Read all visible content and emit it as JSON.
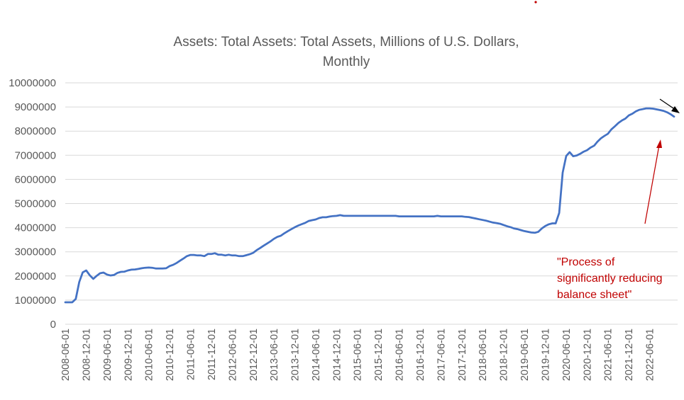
{
  "chart_data": {
    "type": "line",
    "title": "Assets: Total Assets: Total Assets, Millions of U.S. Dollars, Monthly",
    "title_lines": [
      "Assets: Total Assets: Total Assets, Millions of U.S. Dollars,",
      "Monthly"
    ],
    "xlabel": "",
    "ylabel": "",
    "ylim": [
      0,
      10000000
    ],
    "yticks": [
      0,
      1000000,
      2000000,
      3000000,
      4000000,
      5000000,
      6000000,
      7000000,
      8000000,
      9000000,
      10000000
    ],
    "ytick_labels": [
      "0",
      "1000000",
      "2000000",
      "3000000",
      "4000000",
      "5000000",
      "6000000",
      "7000000",
      "8000000",
      "9000000",
      "10000000"
    ],
    "xtick_labels": [
      "2008-06-01",
      "2008-12-01",
      "2009-06-01",
      "2009-12-01",
      "2010-06-01",
      "2010-12-01",
      "2011-06-01",
      "2011-12-01",
      "2012-06-01",
      "2012-12-01",
      "2013-06-01",
      "2013-12-01",
      "2014-06-01",
      "2014-12-01",
      "2015-06-01",
      "2015-12-01",
      "2016-06-01",
      "2016-12-01",
      "2017-06-01",
      "2017-12-01",
      "2018-06-01",
      "2018-12-01",
      "2019-06-01",
      "2019-12-01",
      "2020-06-01",
      "2020-12-01",
      "2021-06-01",
      "2021-12-01",
      "2022-06-01"
    ],
    "grid": "horizontal",
    "legend": "none",
    "series_color": "#4472c4",
    "annotation_color": "#c00000",
    "annotation_lines": [
      "\"Process of",
      "significantly reducing",
      "balance sheet\""
    ],
    "series": [
      {
        "points": [
          [
            "2008-06-01",
            910000
          ],
          [
            "2008-07-01",
            910000
          ],
          [
            "2008-08-01",
            910000
          ],
          [
            "2008-09-01",
            1050000
          ],
          [
            "2008-10-01",
            1750000
          ],
          [
            "2008-11-01",
            2150000
          ],
          [
            "2008-12-01",
            2230000
          ],
          [
            "2009-01-01",
            2030000
          ],
          [
            "2009-02-01",
            1880000
          ],
          [
            "2009-03-01",
            2000000
          ],
          [
            "2009-04-01",
            2110000
          ],
          [
            "2009-05-01",
            2140000
          ],
          [
            "2009-06-01",
            2060000
          ],
          [
            "2009-07-01",
            2020000
          ],
          [
            "2009-08-01",
            2040000
          ],
          [
            "2009-09-01",
            2130000
          ],
          [
            "2009-10-01",
            2170000
          ],
          [
            "2009-11-01",
            2180000
          ],
          [
            "2009-12-01",
            2230000
          ],
          [
            "2010-01-01",
            2260000
          ],
          [
            "2010-02-01",
            2270000
          ],
          [
            "2010-03-01",
            2290000
          ],
          [
            "2010-04-01",
            2320000
          ],
          [
            "2010-05-01",
            2340000
          ],
          [
            "2010-06-01",
            2350000
          ],
          [
            "2010-07-01",
            2340000
          ],
          [
            "2010-08-01",
            2310000
          ],
          [
            "2010-09-01",
            2310000
          ],
          [
            "2010-10-01",
            2310000
          ],
          [
            "2010-11-01",
            2320000
          ],
          [
            "2010-12-01",
            2410000
          ],
          [
            "2011-01-01",
            2460000
          ],
          [
            "2011-02-01",
            2540000
          ],
          [
            "2011-03-01",
            2630000
          ],
          [
            "2011-04-01",
            2720000
          ],
          [
            "2011-05-01",
            2820000
          ],
          [
            "2011-06-01",
            2870000
          ],
          [
            "2011-07-01",
            2870000
          ],
          [
            "2011-08-01",
            2850000
          ],
          [
            "2011-09-01",
            2850000
          ],
          [
            "2011-10-01",
            2820000
          ],
          [
            "2011-11-01",
            2910000
          ],
          [
            "2011-12-01",
            2910000
          ],
          [
            "2012-01-01",
            2940000
          ],
          [
            "2012-02-01",
            2880000
          ],
          [
            "2012-03-01",
            2880000
          ],
          [
            "2012-04-01",
            2850000
          ],
          [
            "2012-05-01",
            2880000
          ],
          [
            "2012-06-01",
            2850000
          ],
          [
            "2012-07-01",
            2850000
          ],
          [
            "2012-08-01",
            2820000
          ],
          [
            "2012-09-01",
            2820000
          ],
          [
            "2012-10-01",
            2860000
          ],
          [
            "2012-11-01",
            2900000
          ],
          [
            "2012-12-01",
            2960000
          ],
          [
            "2013-01-01",
            3070000
          ],
          [
            "2013-02-01",
            3160000
          ],
          [
            "2013-03-01",
            3250000
          ],
          [
            "2013-04-01",
            3340000
          ],
          [
            "2013-05-01",
            3430000
          ],
          [
            "2013-06-01",
            3540000
          ],
          [
            "2013-07-01",
            3620000
          ],
          [
            "2013-08-01",
            3670000
          ],
          [
            "2013-09-01",
            3770000
          ],
          [
            "2013-10-01",
            3860000
          ],
          [
            "2013-11-01",
            3940000
          ],
          [
            "2013-12-01",
            4020000
          ],
          [
            "2014-01-01",
            4090000
          ],
          [
            "2014-02-01",
            4150000
          ],
          [
            "2014-03-01",
            4200000
          ],
          [
            "2014-04-01",
            4280000
          ],
          [
            "2014-05-01",
            4310000
          ],
          [
            "2014-06-01",
            4340000
          ],
          [
            "2014-07-01",
            4400000
          ],
          [
            "2014-08-01",
            4430000
          ],
          [
            "2014-09-01",
            4430000
          ],
          [
            "2014-10-01",
            4460000
          ],
          [
            "2014-11-01",
            4480000
          ],
          [
            "2014-12-01",
            4490000
          ],
          [
            "2015-01-01",
            4520000
          ],
          [
            "2015-02-01",
            4490000
          ],
          [
            "2015-03-01",
            4490000
          ],
          [
            "2015-04-01",
            4490000
          ],
          [
            "2015-05-01",
            4490000
          ],
          [
            "2015-06-01",
            4490000
          ],
          [
            "2015-07-01",
            4490000
          ],
          [
            "2015-08-01",
            4490000
          ],
          [
            "2015-09-01",
            4490000
          ],
          [
            "2015-10-01",
            4490000
          ],
          [
            "2015-11-01",
            4490000
          ],
          [
            "2015-12-01",
            4490000
          ],
          [
            "2016-01-01",
            4490000
          ],
          [
            "2016-02-01",
            4490000
          ],
          [
            "2016-03-01",
            4490000
          ],
          [
            "2016-04-01",
            4490000
          ],
          [
            "2016-05-01",
            4490000
          ],
          [
            "2016-06-01",
            4470000
          ],
          [
            "2016-07-01",
            4470000
          ],
          [
            "2016-08-01",
            4470000
          ],
          [
            "2016-09-01",
            4470000
          ],
          [
            "2016-10-01",
            4470000
          ],
          [
            "2016-11-01",
            4470000
          ],
          [
            "2016-12-01",
            4470000
          ],
          [
            "2017-01-01",
            4470000
          ],
          [
            "2017-02-01",
            4470000
          ],
          [
            "2017-03-01",
            4470000
          ],
          [
            "2017-04-01",
            4470000
          ],
          [
            "2017-05-01",
            4490000
          ],
          [
            "2017-06-01",
            4470000
          ],
          [
            "2017-07-01",
            4470000
          ],
          [
            "2017-08-01",
            4470000
          ],
          [
            "2017-09-01",
            4470000
          ],
          [
            "2017-10-01",
            4470000
          ],
          [
            "2017-11-01",
            4470000
          ],
          [
            "2017-12-01",
            4470000
          ],
          [
            "2018-01-01",
            4450000
          ],
          [
            "2018-02-01",
            4440000
          ],
          [
            "2018-03-01",
            4410000
          ],
          [
            "2018-04-01",
            4380000
          ],
          [
            "2018-05-01",
            4350000
          ],
          [
            "2018-06-01",
            4320000
          ],
          [
            "2018-07-01",
            4290000
          ],
          [
            "2018-08-01",
            4250000
          ],
          [
            "2018-09-01",
            4210000
          ],
          [
            "2018-10-01",
            4190000
          ],
          [
            "2018-11-01",
            4160000
          ],
          [
            "2018-12-01",
            4110000
          ],
          [
            "2019-01-01",
            4060000
          ],
          [
            "2019-02-01",
            4020000
          ],
          [
            "2019-03-01",
            3970000
          ],
          [
            "2019-04-01",
            3940000
          ],
          [
            "2019-05-01",
            3900000
          ],
          [
            "2019-06-01",
            3860000
          ],
          [
            "2019-07-01",
            3830000
          ],
          [
            "2019-08-01",
            3800000
          ],
          [
            "2019-09-01",
            3790000
          ],
          [
            "2019-10-01",
            3830000
          ],
          [
            "2019-11-01",
            3970000
          ],
          [
            "2019-12-01",
            4070000
          ],
          [
            "2020-01-01",
            4140000
          ],
          [
            "2020-02-01",
            4180000
          ],
          [
            "2020-03-01",
            4180000
          ],
          [
            "2020-04-01",
            4610000
          ],
          [
            "2020-05-01",
            6280000
          ],
          [
            "2020-06-01",
            6970000
          ],
          [
            "2020-07-01",
            7130000
          ],
          [
            "2020-08-01",
            6960000
          ],
          [
            "2020-09-01",
            6990000
          ],
          [
            "2020-10-01",
            7060000
          ],
          [
            "2020-11-01",
            7150000
          ],
          [
            "2020-12-01",
            7210000
          ],
          [
            "2021-01-01",
            7320000
          ],
          [
            "2021-02-01",
            7400000
          ],
          [
            "2021-03-01",
            7560000
          ],
          [
            "2021-04-01",
            7700000
          ],
          [
            "2021-05-01",
            7800000
          ],
          [
            "2021-06-01",
            7890000
          ],
          [
            "2021-07-01",
            8070000
          ],
          [
            "2021-08-01",
            8200000
          ],
          [
            "2021-09-01",
            8340000
          ],
          [
            "2021-10-01",
            8440000
          ],
          [
            "2021-11-01",
            8520000
          ],
          [
            "2021-12-01",
            8650000
          ],
          [
            "2022-01-01",
            8720000
          ],
          [
            "2022-02-01",
            8820000
          ],
          [
            "2022-03-01",
            8880000
          ],
          [
            "2022-04-01",
            8910000
          ],
          [
            "2022-05-01",
            8940000
          ],
          [
            "2022-06-01",
            8940000
          ],
          [
            "2022-07-01",
            8930000
          ],
          [
            "2022-08-01",
            8900000
          ],
          [
            "2022-09-01",
            8870000
          ],
          [
            "2022-10-01",
            8840000
          ],
          [
            "2022-11-01",
            8780000
          ],
          [
            "2022-12-01",
            8700000
          ],
          [
            "2023-01-01",
            8600000
          ]
        ]
      }
    ]
  }
}
